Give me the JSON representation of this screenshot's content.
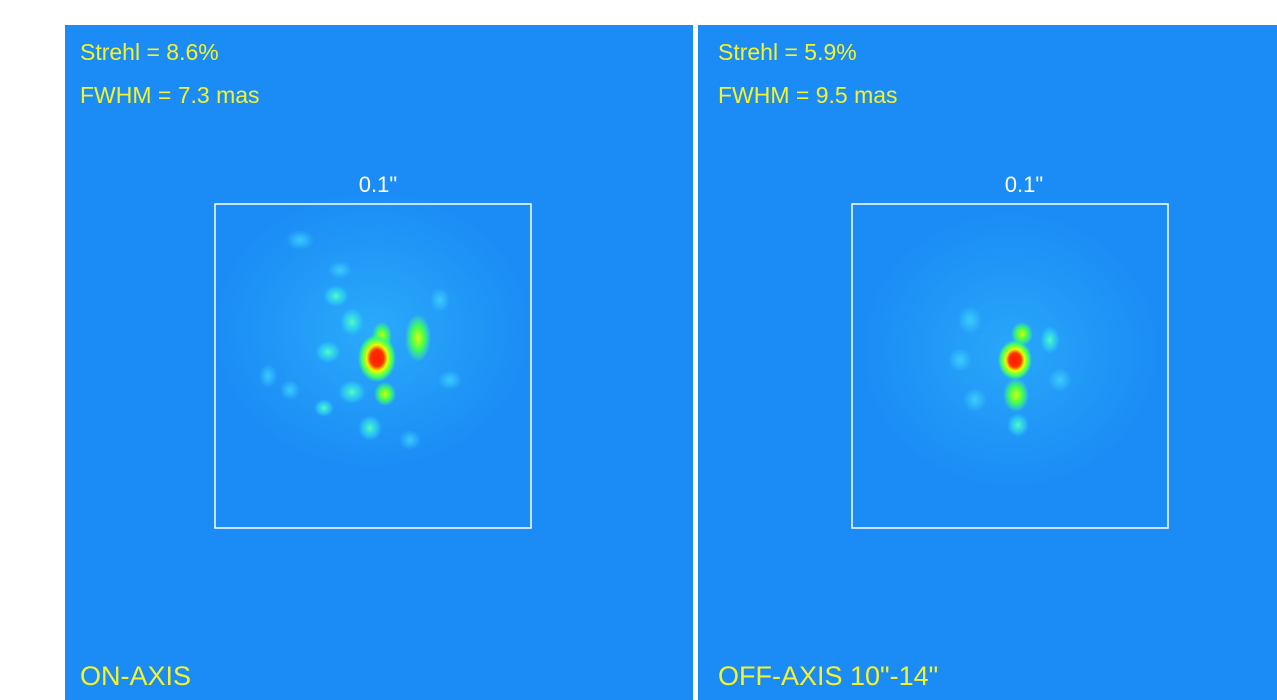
{
  "panels": [
    {
      "strehl": "Strehl = 8.6%",
      "fwhm": "FWHM = 7.3 mas",
      "scale": "0.1\"",
      "label": "ON-AXIS"
    },
    {
      "strehl": "Strehl = 5.9%",
      "fwhm": "FWHM = 9.5 mas",
      "scale": "0.1\"",
      "label": "OFF-AXIS 10\"-14\""
    }
  ]
}
